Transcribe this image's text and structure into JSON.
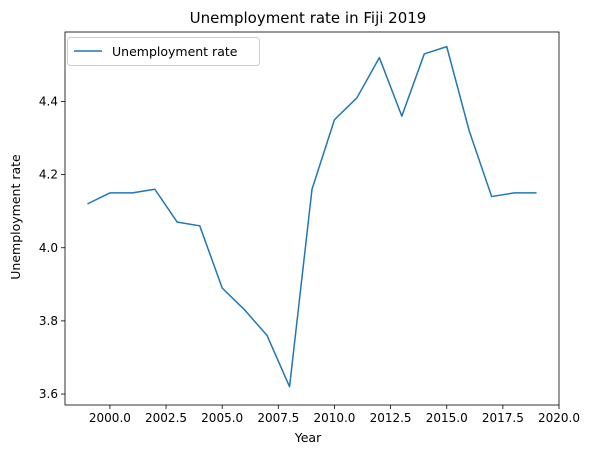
{
  "chart_data": {
    "type": "line",
    "title": "Unemployment rate in Fiji 2019",
    "xlabel": "Year",
    "ylabel": "Unemployment rate",
    "xlim": [
      1998.0,
      2020.0
    ],
    "ylim": [
      3.57,
      4.59
    ],
    "x_ticks": [
      2000.0,
      2002.5,
      2005.0,
      2007.5,
      2010.0,
      2012.5,
      2015.0,
      2017.5,
      2020.0
    ],
    "x_tick_labels": [
      "2000.0",
      "2002.5",
      "2005.0",
      "2007.5",
      "2010.0",
      "2012.5",
      "2015.0",
      "2017.5",
      "2020.0"
    ],
    "y_ticks": [
      3.6,
      3.8,
      4.0,
      4.2,
      4.4
    ],
    "y_tick_labels": [
      "3.6",
      "3.8",
      "4.0",
      "4.2",
      "4.4"
    ],
    "grid": false,
    "legend": "top-left",
    "series": [
      {
        "name": "Unemployment rate",
        "color": "#1f77b4",
        "x": [
          1999,
          2000,
          2001,
          2002,
          2003,
          2004,
          2005,
          2006,
          2007,
          2008,
          2009,
          2010,
          2011,
          2012,
          2013,
          2014,
          2015,
          2016,
          2017,
          2018,
          2019
        ],
        "y": [
          4.12,
          4.15,
          4.15,
          4.16,
          4.07,
          4.06,
          3.89,
          3.83,
          3.76,
          3.62,
          4.16,
          4.35,
          4.41,
          4.52,
          4.36,
          4.53,
          4.55,
          4.32,
          4.14,
          4.15,
          4.15
        ]
      }
    ]
  }
}
